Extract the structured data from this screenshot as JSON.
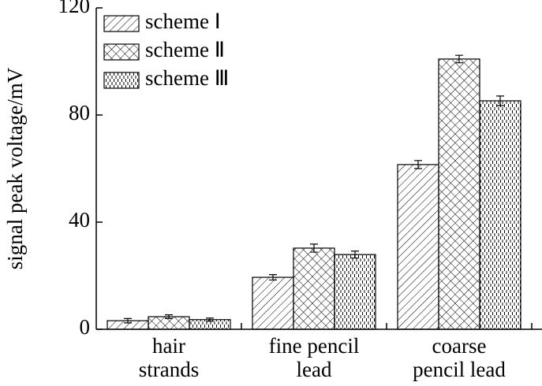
{
  "chart_data": {
    "type": "bar",
    "y_label": "signal peak voltage/mV",
    "categories": [
      [
        "hair",
        "strands"
      ],
      [
        "fine pencil",
        "lead"
      ],
      [
        "coarse",
        "pencil lead"
      ]
    ],
    "series": [
      {
        "name": "scheme Ⅰ",
        "color": "#000000",
        "pattern": "diagonal",
        "values": [
          3.2,
          19.4,
          61.5
        ],
        "errors": [
          0.8,
          1.0,
          1.5
        ]
      },
      {
        "name": "scheme Ⅱ",
        "color": "#000000",
        "pattern": "crosshatch",
        "values": [
          4.7,
          30.3,
          100.9
        ],
        "errors": [
          0.7,
          1.5,
          1.4
        ]
      },
      {
        "name": "scheme Ⅲ",
        "color": "#000000",
        "pattern": "dashes",
        "values": [
          3.6,
          27.9,
          85.3
        ],
        "errors": [
          0.6,
          1.3,
          1.8
        ]
      }
    ],
    "ylim": [
      0,
      120
    ],
    "yticks": [
      0,
      40,
      80,
      120
    ],
    "legend": "upper left"
  }
}
